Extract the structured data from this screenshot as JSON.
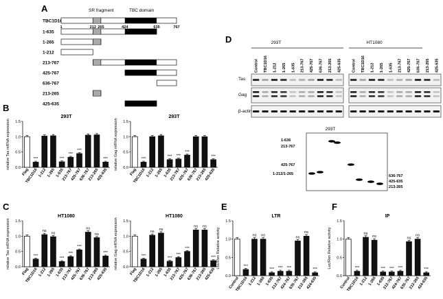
{
  "panels": {
    "A": {
      "letter": "A",
      "header_sr": "SR fragment",
      "header_tbc": "TBC domain",
      "scale_labels": [
        "1",
        "212",
        "265",
        "424",
        "635",
        "767"
      ],
      "constructs": [
        {
          "name": "TBC1D16",
          "start": 1,
          "end": 767
        },
        {
          "name": "1-635",
          "start": 1,
          "end": 635
        },
        {
          "name": "1-265",
          "start": 1,
          "end": 265
        },
        {
          "name": "1-212",
          "start": 1,
          "end": 212
        },
        {
          "name": "213-767",
          "start": 213,
          "end": 767
        },
        {
          "name": "425-767",
          "start": 425,
          "end": 767
        },
        {
          "name": "636-767",
          "start": 636,
          "end": 767
        },
        {
          "name": "213-265",
          "start": 213,
          "end": 265
        },
        {
          "name": "425-635",
          "start": 425,
          "end": 635
        }
      ]
    },
    "B": {
      "letter": "B"
    },
    "C": {
      "letter": "C"
    },
    "D": {
      "letter": "D",
      "cell_lines": [
        "293T",
        "HT1080"
      ],
      "lanes": [
        "Control",
        "TBC1D16",
        "1-212",
        "1-265",
        "1-635",
        "213-767",
        "425-767",
        "636-767",
        "213-265",
        "425-635"
      ],
      "rows": [
        "Tas",
        "Gag",
        "β-actin"
      ],
      "inset_title": "293T",
      "inset_labels_left": [
        "1-636",
        "213-767",
        "425-767",
        "1-212/1-265"
      ],
      "inset_labels_right": [
        "636-767",
        "425-635",
        "213-265"
      ]
    },
    "E": {
      "letter": "E"
    },
    "F": {
      "letter": "F"
    }
  },
  "chart_data": [
    {
      "id": "B1",
      "type": "bar",
      "title": "293T",
      "ylabel": "relative Tas mRNA expression",
      "ylim": [
        0,
        1.5
      ],
      "yticks": [
        "0.0",
        "0.5",
        "1.0",
        "1.5"
      ],
      "categories": [
        "Flag",
        "TBC1D16",
        "1-212",
        "1-265",
        "1-635",
        "213-767",
        "425-767",
        "636-767",
        "213-265",
        "425-635"
      ],
      "values": [
        1.0,
        0.17,
        1.02,
        1.03,
        0.18,
        0.33,
        0.45,
        1.05,
        1.06,
        0.17
      ],
      "annotations": [
        "",
        "***",
        "",
        "",
        "***",
        "***",
        "***",
        "",
        "",
        "***"
      ]
    },
    {
      "id": "B2",
      "type": "bar",
      "title": "293T",
      "ylabel": "relative Gag mRNA expression",
      "ylim": [
        0,
        1.5
      ],
      "yticks": [
        "0.0",
        "0.5",
        "1.0",
        "1.5"
      ],
      "categories": [
        "Flag",
        "TBC1D16",
        "1-212",
        "1-265",
        "1-635",
        "213-767",
        "425-767",
        "636-767",
        "213-265",
        "425-635"
      ],
      "values": [
        1.0,
        0.17,
        1.0,
        1.03,
        0.25,
        0.27,
        0.4,
        1.0,
        1.0,
        0.25
      ],
      "annotations": [
        "",
        "***",
        "",
        "",
        "***",
        "***",
        "***",
        "",
        "",
        "***"
      ]
    },
    {
      "id": "C1",
      "type": "bar",
      "title": "HT1080",
      "ylabel": "relative Tas mRNA expression",
      "ylim": [
        0,
        1.5
      ],
      "yticks": [
        "0.0",
        "0.5",
        "1.0",
        "1.5"
      ],
      "categories": [
        "Flag",
        "TBC1D16",
        "1-212",
        "1-265",
        "1-635",
        "213-767",
        "425-767",
        "636-767",
        "213-265",
        "425-635"
      ],
      "values": [
        1.0,
        0.25,
        1.05,
        0.98,
        0.17,
        0.33,
        0.55,
        1.13,
        0.95,
        0.35
      ],
      "annotations": [
        "",
        "***",
        "ns",
        "ns",
        "***",
        "***",
        "***",
        "ns",
        "ns",
        "***"
      ]
    },
    {
      "id": "C2",
      "type": "bar",
      "title": "HT1080",
      "ylabel": "relative Gag mRNA expression",
      "ylim": [
        0,
        1.5
      ],
      "yticks": [
        "0.0",
        "0.5",
        "1.0",
        "1.5"
      ],
      "categories": [
        "Flag",
        "TBC1D16",
        "1-212",
        "1-265",
        "1-635",
        "213-767",
        "425-767",
        "636-767",
        "213-265",
        "425-635"
      ],
      "values": [
        1.0,
        0.25,
        1.03,
        1.1,
        0.18,
        0.3,
        0.5,
        1.2,
        1.2,
        0.2
      ],
      "annotations": [
        "",
        "***",
        "ns",
        "ns",
        "***",
        "***",
        "***",
        "ns",
        "ns",
        "***"
      ]
    },
    {
      "id": "E",
      "type": "bar",
      "title": "LTR",
      "ylabel": "Luc/Ren Relative activity",
      "ylim": [
        0,
        1.5
      ],
      "yticks": [
        "0.0",
        "0.5",
        "1.0",
        "1.5"
      ],
      "categories": [
        "Control",
        "TBC1D16",
        "1-212",
        "1-265",
        "1-635",
        "212-767",
        "424-767",
        "635-767",
        "212-265",
        "424-635"
      ],
      "values": [
        1.0,
        0.17,
        1.0,
        1.0,
        0.08,
        0.12,
        0.12,
        0.95,
        1.08,
        0.08
      ],
      "annotations": [
        "",
        "***",
        "ns",
        "ns",
        "***",
        "***",
        "***",
        "ns",
        "ns",
        "***"
      ]
    },
    {
      "id": "F",
      "type": "bar",
      "title": "IP",
      "ylabel": "Luc/Ren Relative activity",
      "ylim": [
        0,
        1.5
      ],
      "yticks": [
        "0.0",
        "0.5",
        "1.0",
        "1.5"
      ],
      "categories": [
        "Control",
        "TBC1D16",
        "1-212",
        "1-265",
        "1-635",
        "212-767",
        "424-767",
        "635-767",
        "212-265",
        "424-635"
      ],
      "values": [
        1.0,
        0.12,
        1.05,
        0.97,
        0.1,
        0.1,
        0.12,
        0.93,
        1.0,
        0.08
      ],
      "annotations": [
        "",
        "***",
        "ns",
        "ns",
        "***",
        "***",
        "***",
        "ns",
        "ns",
        "***"
      ]
    }
  ]
}
